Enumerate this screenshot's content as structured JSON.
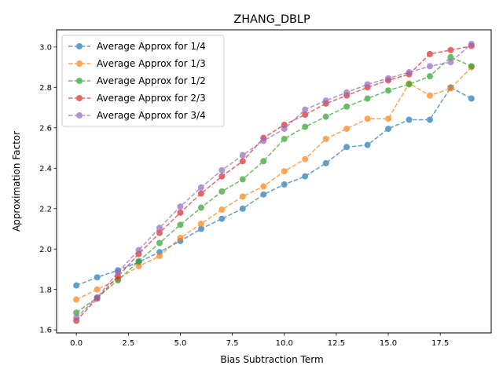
{
  "chart_data": {
    "type": "line",
    "title": "ZHANG_DBLP",
    "xlabel": "Bias Subtraction Term",
    "ylabel": "Approximation Factor",
    "xlim": [
      -0.95,
      19.95
    ],
    "ylim": [
      1.585,
      3.085
    ],
    "xticks": [
      0.0,
      2.5,
      5.0,
      7.5,
      10.0,
      12.5,
      15.0,
      17.5
    ],
    "xtick_labels": [
      "0.0",
      "2.5",
      "5.0",
      "7.5",
      "10.0",
      "12.5",
      "15.0",
      "17.5"
    ],
    "yticks": [
      1.6,
      1.8,
      2.0,
      2.2,
      2.4,
      2.6,
      2.8,
      3.0
    ],
    "ytick_labels": [
      "1.6",
      "1.8",
      "2.0",
      "2.2",
      "2.4",
      "2.6",
      "2.8",
      "3.0"
    ],
    "grid": false,
    "legend_position": "upper-left",
    "x": [
      0,
      1,
      2,
      3,
      4,
      5,
      6,
      7,
      8,
      9,
      10,
      11,
      12,
      13,
      14,
      15,
      16,
      17,
      18,
      19
    ],
    "series": [
      {
        "name": "Average Approx for 1/4",
        "color": "#1f77b4",
        "values": [
          1.82,
          1.86,
          1.895,
          1.935,
          1.985,
          2.04,
          2.1,
          2.15,
          2.2,
          2.27,
          2.32,
          2.36,
          2.425,
          2.505,
          2.515,
          2.595,
          2.64,
          2.64,
          2.8,
          2.745
        ]
      },
      {
        "name": "Average Approx for 1/3",
        "color": "#ff7f0e",
        "values": [
          1.75,
          1.8,
          1.85,
          1.915,
          1.965,
          2.055,
          2.125,
          2.195,
          2.26,
          2.31,
          2.385,
          2.445,
          2.545,
          2.595,
          2.645,
          2.645,
          2.82,
          2.76,
          2.795,
          2.9
        ]
      },
      {
        "name": "Average Approx for 1/2",
        "color": "#2ca02c",
        "values": [
          1.685,
          1.76,
          1.845,
          1.94,
          2.03,
          2.12,
          2.205,
          2.285,
          2.345,
          2.435,
          2.545,
          2.605,
          2.655,
          2.705,
          2.745,
          2.785,
          2.815,
          2.855,
          2.95,
          2.905
        ]
      },
      {
        "name": "Average Approx for 2/3",
        "color": "#d62728",
        "values": [
          1.645,
          1.755,
          1.865,
          1.975,
          2.08,
          2.18,
          2.275,
          2.36,
          2.435,
          2.55,
          2.615,
          2.665,
          2.72,
          2.76,
          2.8,
          2.835,
          2.865,
          2.965,
          2.985,
          3.005
        ]
      },
      {
        "name": "Average Approx for 3/4",
        "color": "#9467bd",
        "values": [
          1.66,
          1.76,
          1.885,
          1.995,
          2.105,
          2.21,
          2.305,
          2.39,
          2.465,
          2.535,
          2.595,
          2.69,
          2.735,
          2.775,
          2.815,
          2.845,
          2.875,
          2.905,
          2.925,
          3.015
        ]
      }
    ]
  }
}
